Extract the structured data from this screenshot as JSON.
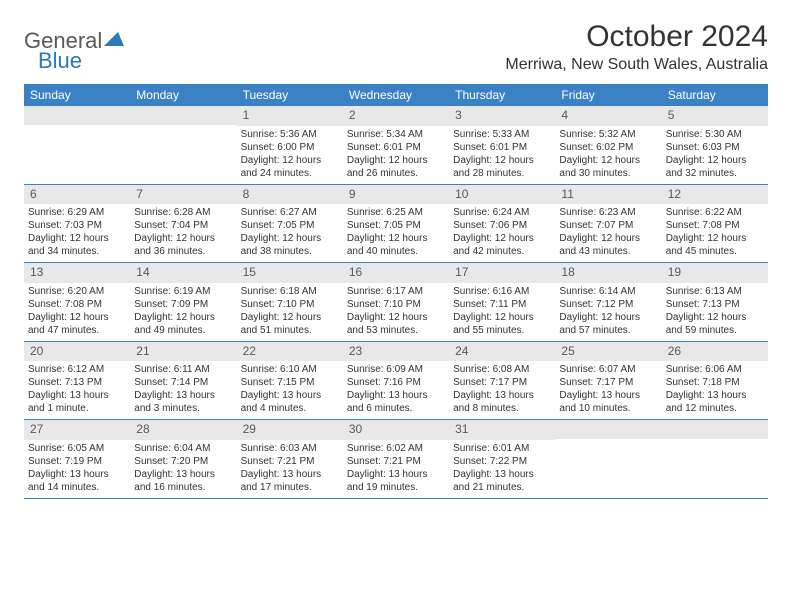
{
  "logo": {
    "text1": "General",
    "text2": "Blue"
  },
  "title": "October 2024",
  "location": "Merriwa, New South Wales, Australia",
  "colors": {
    "header_bg": "#3b82c4",
    "header_text": "#ffffff",
    "daynum_bg": "#e8e8e8",
    "daynum_text": "#58595b",
    "body_text": "#333333",
    "logo_gray": "#58595b",
    "logo_blue": "#2a7ab9"
  },
  "day_headers": [
    "Sunday",
    "Monday",
    "Tuesday",
    "Wednesday",
    "Thursday",
    "Friday",
    "Saturday"
  ],
  "weeks": [
    [
      {
        "day": "",
        "sunrise": "",
        "sunset": "",
        "daylight": ""
      },
      {
        "day": "",
        "sunrise": "",
        "sunset": "",
        "daylight": ""
      },
      {
        "day": "1",
        "sunrise": "Sunrise: 5:36 AM",
        "sunset": "Sunset: 6:00 PM",
        "daylight": "Daylight: 12 hours and 24 minutes."
      },
      {
        "day": "2",
        "sunrise": "Sunrise: 5:34 AM",
        "sunset": "Sunset: 6:01 PM",
        "daylight": "Daylight: 12 hours and 26 minutes."
      },
      {
        "day": "3",
        "sunrise": "Sunrise: 5:33 AM",
        "sunset": "Sunset: 6:01 PM",
        "daylight": "Daylight: 12 hours and 28 minutes."
      },
      {
        "day": "4",
        "sunrise": "Sunrise: 5:32 AM",
        "sunset": "Sunset: 6:02 PM",
        "daylight": "Daylight: 12 hours and 30 minutes."
      },
      {
        "day": "5",
        "sunrise": "Sunrise: 5:30 AM",
        "sunset": "Sunset: 6:03 PM",
        "daylight": "Daylight: 12 hours and 32 minutes."
      }
    ],
    [
      {
        "day": "6",
        "sunrise": "Sunrise: 6:29 AM",
        "sunset": "Sunset: 7:03 PM",
        "daylight": "Daylight: 12 hours and 34 minutes."
      },
      {
        "day": "7",
        "sunrise": "Sunrise: 6:28 AM",
        "sunset": "Sunset: 7:04 PM",
        "daylight": "Daylight: 12 hours and 36 minutes."
      },
      {
        "day": "8",
        "sunrise": "Sunrise: 6:27 AM",
        "sunset": "Sunset: 7:05 PM",
        "daylight": "Daylight: 12 hours and 38 minutes."
      },
      {
        "day": "9",
        "sunrise": "Sunrise: 6:25 AM",
        "sunset": "Sunset: 7:05 PM",
        "daylight": "Daylight: 12 hours and 40 minutes."
      },
      {
        "day": "10",
        "sunrise": "Sunrise: 6:24 AM",
        "sunset": "Sunset: 7:06 PM",
        "daylight": "Daylight: 12 hours and 42 minutes."
      },
      {
        "day": "11",
        "sunrise": "Sunrise: 6:23 AM",
        "sunset": "Sunset: 7:07 PM",
        "daylight": "Daylight: 12 hours and 43 minutes."
      },
      {
        "day": "12",
        "sunrise": "Sunrise: 6:22 AM",
        "sunset": "Sunset: 7:08 PM",
        "daylight": "Daylight: 12 hours and 45 minutes."
      }
    ],
    [
      {
        "day": "13",
        "sunrise": "Sunrise: 6:20 AM",
        "sunset": "Sunset: 7:08 PM",
        "daylight": "Daylight: 12 hours and 47 minutes."
      },
      {
        "day": "14",
        "sunrise": "Sunrise: 6:19 AM",
        "sunset": "Sunset: 7:09 PM",
        "daylight": "Daylight: 12 hours and 49 minutes."
      },
      {
        "day": "15",
        "sunrise": "Sunrise: 6:18 AM",
        "sunset": "Sunset: 7:10 PM",
        "daylight": "Daylight: 12 hours and 51 minutes."
      },
      {
        "day": "16",
        "sunrise": "Sunrise: 6:17 AM",
        "sunset": "Sunset: 7:10 PM",
        "daylight": "Daylight: 12 hours and 53 minutes."
      },
      {
        "day": "17",
        "sunrise": "Sunrise: 6:16 AM",
        "sunset": "Sunset: 7:11 PM",
        "daylight": "Daylight: 12 hours and 55 minutes."
      },
      {
        "day": "18",
        "sunrise": "Sunrise: 6:14 AM",
        "sunset": "Sunset: 7:12 PM",
        "daylight": "Daylight: 12 hours and 57 minutes."
      },
      {
        "day": "19",
        "sunrise": "Sunrise: 6:13 AM",
        "sunset": "Sunset: 7:13 PM",
        "daylight": "Daylight: 12 hours and 59 minutes."
      }
    ],
    [
      {
        "day": "20",
        "sunrise": "Sunrise: 6:12 AM",
        "sunset": "Sunset: 7:13 PM",
        "daylight": "Daylight: 13 hours and 1 minute."
      },
      {
        "day": "21",
        "sunrise": "Sunrise: 6:11 AM",
        "sunset": "Sunset: 7:14 PM",
        "daylight": "Daylight: 13 hours and 3 minutes."
      },
      {
        "day": "22",
        "sunrise": "Sunrise: 6:10 AM",
        "sunset": "Sunset: 7:15 PM",
        "daylight": "Daylight: 13 hours and 4 minutes."
      },
      {
        "day": "23",
        "sunrise": "Sunrise: 6:09 AM",
        "sunset": "Sunset: 7:16 PM",
        "daylight": "Daylight: 13 hours and 6 minutes."
      },
      {
        "day": "24",
        "sunrise": "Sunrise: 6:08 AM",
        "sunset": "Sunset: 7:17 PM",
        "daylight": "Daylight: 13 hours and 8 minutes."
      },
      {
        "day": "25",
        "sunrise": "Sunrise: 6:07 AM",
        "sunset": "Sunset: 7:17 PM",
        "daylight": "Daylight: 13 hours and 10 minutes."
      },
      {
        "day": "26",
        "sunrise": "Sunrise: 6:06 AM",
        "sunset": "Sunset: 7:18 PM",
        "daylight": "Daylight: 13 hours and 12 minutes."
      }
    ],
    [
      {
        "day": "27",
        "sunrise": "Sunrise: 6:05 AM",
        "sunset": "Sunset: 7:19 PM",
        "daylight": "Daylight: 13 hours and 14 minutes."
      },
      {
        "day": "28",
        "sunrise": "Sunrise: 6:04 AM",
        "sunset": "Sunset: 7:20 PM",
        "daylight": "Daylight: 13 hours and 16 minutes."
      },
      {
        "day": "29",
        "sunrise": "Sunrise: 6:03 AM",
        "sunset": "Sunset: 7:21 PM",
        "daylight": "Daylight: 13 hours and 17 minutes."
      },
      {
        "day": "30",
        "sunrise": "Sunrise: 6:02 AM",
        "sunset": "Sunset: 7:21 PM",
        "daylight": "Daylight: 13 hours and 19 minutes."
      },
      {
        "day": "31",
        "sunrise": "Sunrise: 6:01 AM",
        "sunset": "Sunset: 7:22 PM",
        "daylight": "Daylight: 13 hours and 21 minutes."
      },
      {
        "day": "",
        "sunrise": "",
        "sunset": "",
        "daylight": ""
      },
      {
        "day": "",
        "sunrise": "",
        "sunset": "",
        "daylight": ""
      }
    ]
  ]
}
